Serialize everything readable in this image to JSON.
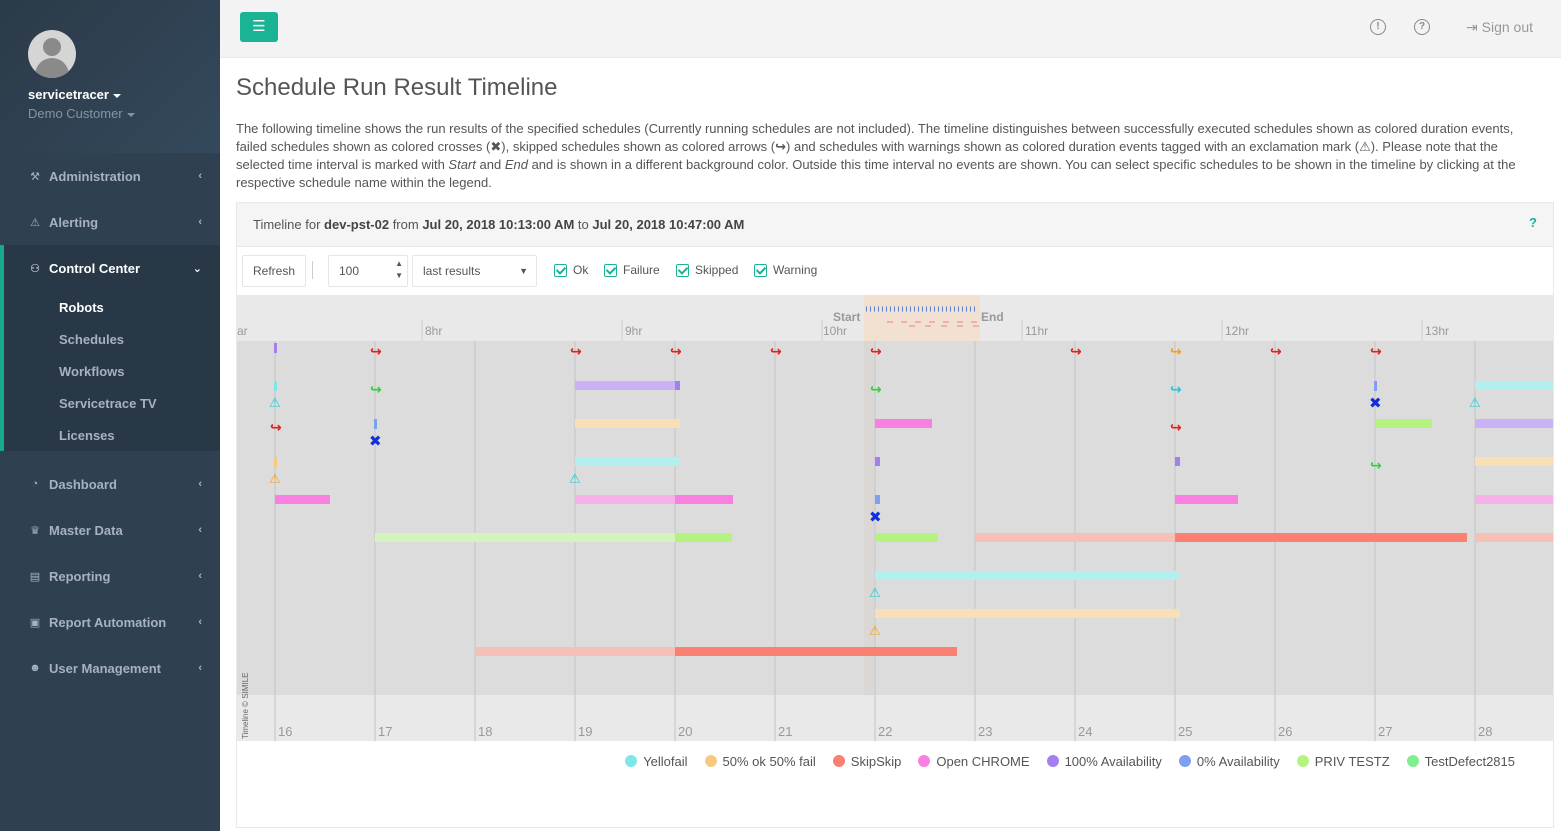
{
  "sidebar": {
    "username": "servicetracer",
    "customer": "Demo Customer",
    "items": [
      {
        "label": "Administration",
        "icon": "wrench-icon"
      },
      {
        "label": "Alerting",
        "icon": "warning-icon"
      },
      {
        "label": "Control Center",
        "icon": "sitemap-icon"
      },
      {
        "label": "Dashboard",
        "icon": "pie-chart-icon"
      },
      {
        "label": "Master Data",
        "icon": "crown-icon"
      },
      {
        "label": "Reporting",
        "icon": "document-icon"
      },
      {
        "label": "Report Automation",
        "icon": "automation-icon"
      },
      {
        "label": "User Management",
        "icon": "users-icon"
      }
    ],
    "control_center_sub": [
      "Robots",
      "Schedules",
      "Workflows",
      "Servicetrace TV",
      "Licenses"
    ]
  },
  "topbar": {
    "signout": "Sign out"
  },
  "page": {
    "title": "Schedule Run Result Timeline",
    "intro_1": "The following timeline shows the run results of the specified schedules (Currently running schedules are not included). The timeline distinguishes between successfully executed schedules shown as colored duration events, failed schedules shown as colored crosses (",
    "intro_2": "), skipped schedules shown as colored arrows (",
    "intro_3": ") and schedules with warnings shown as colored duration events tagged with an exclamation mark (",
    "intro_4": "). Please note that the selected time interval is marked with ",
    "intro_start": "Start",
    "intro_and": " and ",
    "intro_end": "End",
    "intro_5": " and is shown in a different background color. Outside this time interval no events are shown. You can select specific schedules to be shown in the timeline by clicking at the respective schedule name within the legend."
  },
  "panel": {
    "head_prefix": "Timeline for ",
    "robot": "dev-pst-02",
    "from_word": " from ",
    "from": "Jul 20, 2018 10:13:00 AM",
    "to_word": " to ",
    "to": "Jul 20, 2018 10:47:00 AM",
    "help": "?"
  },
  "toolbar": {
    "refresh": "Refresh",
    "count": "100",
    "mode": "last results",
    "filters": [
      "Ok",
      "Failure",
      "Skipped",
      "Warning"
    ]
  },
  "timeline": {
    "hour_labels": [
      "ar",
      "8hr",
      "9hr",
      "10hr",
      "11hr",
      "12hr",
      "13hr"
    ],
    "start_label": "Start",
    "end_label": "End",
    "day_labels": [
      "16",
      "17",
      "18",
      "19",
      "20",
      "21",
      "22",
      "23",
      "24",
      "25",
      "26",
      "27",
      "28"
    ],
    "credit": "Timeline © SIMILE"
  },
  "legend": [
    {
      "name": "Yellofail",
      "color": "#7fe7e7"
    },
    {
      "name": "50% ok 50% fail",
      "color": "#f7c97f"
    },
    {
      "name": "SkipSkip",
      "color": "#fa8072"
    },
    {
      "name": "Open CHROME",
      "color": "#f97fe0"
    },
    {
      "name": "100% Availability",
      "color": "#a47ff0"
    },
    {
      "name": "0% Availability",
      "color": "#7f9ff0"
    },
    {
      "name": "PRIV TESTZ",
      "color": "#b4f37f"
    },
    {
      "name": "TestDefect2815",
      "color": "#7fef8f"
    }
  ]
}
